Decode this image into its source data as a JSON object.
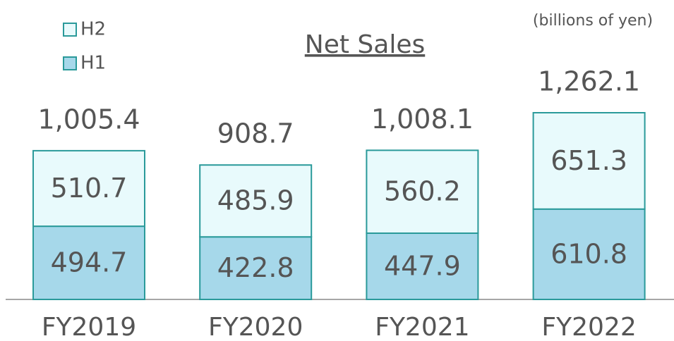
{
  "chart_data": {
    "type": "stacked-bar",
    "title": "Net Sales",
    "subtitle": "(billions of yen)",
    "categories": [
      "FY2019",
      "FY2020",
      "FY2021",
      "FY2022"
    ],
    "series": [
      {
        "name": "H1",
        "color": "#a6d8ea",
        "values": [
          494.7,
          422.8,
          447.9,
          610.8
        ]
      },
      {
        "name": "H2",
        "color": "#e8fafc",
        "values": [
          510.7,
          485.9,
          560.2,
          651.3
        ]
      }
    ],
    "totals": {
      "values": [
        1005.4,
        908.7,
        1008.1,
        1262.1
      ],
      "value_labels": [
        "1,005.4",
        "908.7",
        "1,008.1",
        "1,262.1"
      ]
    },
    "edge_color": "#2a9a9a"
  }
}
